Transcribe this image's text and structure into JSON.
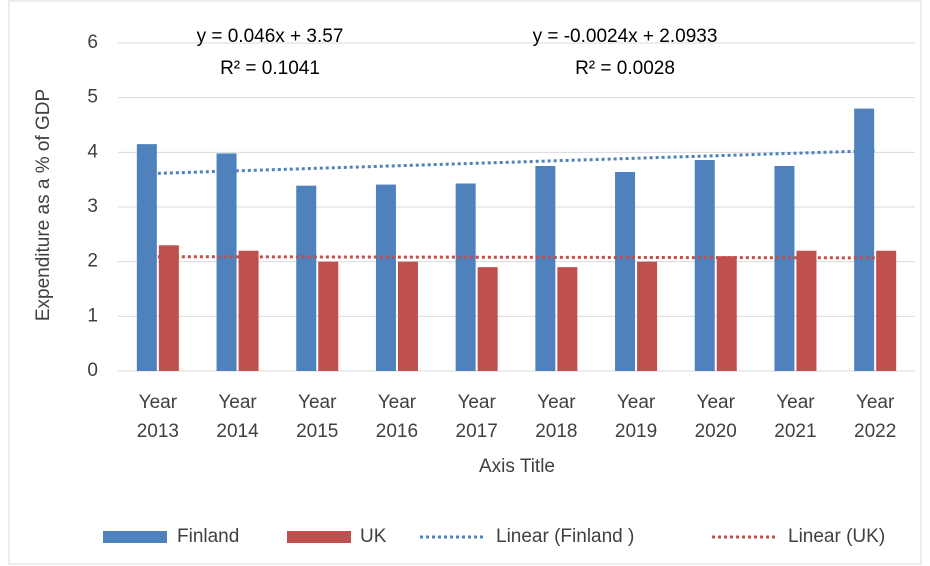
{
  "chart_data": {
    "type": "bar",
    "y_label": "Expenditure as a % of GDP",
    "x_label": "Axis Title",
    "categories": [
      "Year 2013",
      "Year 2014",
      "Year 2015",
      "Year 2016",
      "Year 2017",
      "Year 2018",
      "Year 2019",
      "Year 2020",
      "Year 2021",
      "Year 2022"
    ],
    "series": [
      {
        "name": "Finland",
        "color": "#4f81bd",
        "values": [
          4.15,
          3.98,
          3.39,
          3.41,
          3.43,
          3.75,
          3.64,
          3.86,
          3.75,
          4.8
        ]
      },
      {
        "name": "UK",
        "color": "#c0504d",
        "values": [
          2.3,
          2.2,
          2.0,
          2.0,
          1.9,
          1.9,
          2.0,
          2.1,
          2.2,
          2.2
        ]
      }
    ],
    "trendlines": [
      {
        "name": "Linear (Finland )",
        "color": "#4f81bd",
        "values": [
          3.616,
          3.662,
          3.708,
          3.754,
          3.8,
          3.846,
          3.892,
          3.938,
          3.984,
          4.03
        ]
      },
      {
        "name": "Linear (UK)",
        "color": "#c0504d",
        "values": [
          2.0909,
          2.0885,
          2.0861,
          2.0837,
          2.0813,
          2.0789,
          2.0765,
          2.0741,
          2.0717,
          2.0693
        ]
      }
    ],
    "annotations": [
      {
        "equation": "y = 0.046x + 3.57",
        "r2": "R² = 0.1041"
      },
      {
        "equation": "y = -0.0024x + 2.0933",
        "r2": "R² = 0.0028"
      }
    ],
    "ylim": [
      0,
      6
    ],
    "yticks": [
      0,
      1,
      2,
      3,
      4,
      5,
      6
    ],
    "grid": true
  }
}
